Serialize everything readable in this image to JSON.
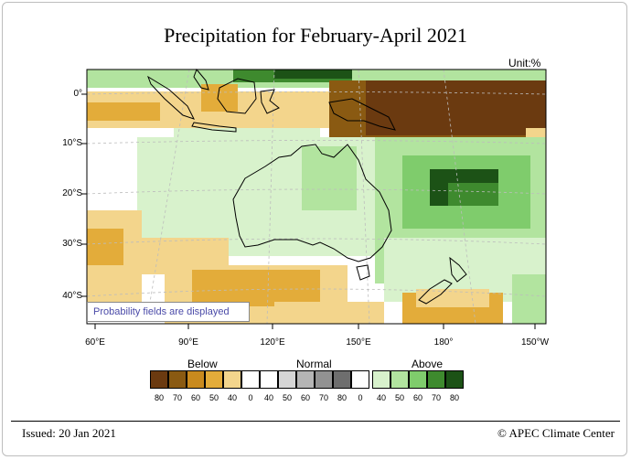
{
  "title": "Precipitation for February-April 2021",
  "unit": "Unit:%",
  "lat_labels": [
    "0°",
    "10°S",
    "20°S",
    "30°S",
    "40°S"
  ],
  "lon_labels": [
    "60°E",
    "90°E",
    "120°E",
    "150°E",
    "180°",
    "150°W"
  ],
  "probability_note": "Probability fields are displayed",
  "legend": {
    "groups": [
      "Below",
      "Normal",
      "Above"
    ],
    "colors": [
      "#6b3a10",
      "#8a5a12",
      "#c98a1e",
      "#e3ac3a",
      "#f3d58c",
      "#ffffff",
      "#ffffff",
      "#d6d6d6",
      "#b5b5b5",
      "#929292",
      "#6e6e6e",
      "#ffffff",
      "#d8f2cc",
      "#b2e49f",
      "#7fcc6c",
      "#3e8a2e",
      "#1c5216"
    ],
    "ticks": [
      "80",
      "70",
      "60",
      "50",
      "40",
      "0",
      "40",
      "50",
      "60",
      "70",
      "80",
      "0",
      "40",
      "50",
      "60",
      "70",
      "80"
    ]
  },
  "footer": {
    "issued": "Issued: 20 Jan 2021",
    "credit": "© APEC Climate Center"
  }
}
